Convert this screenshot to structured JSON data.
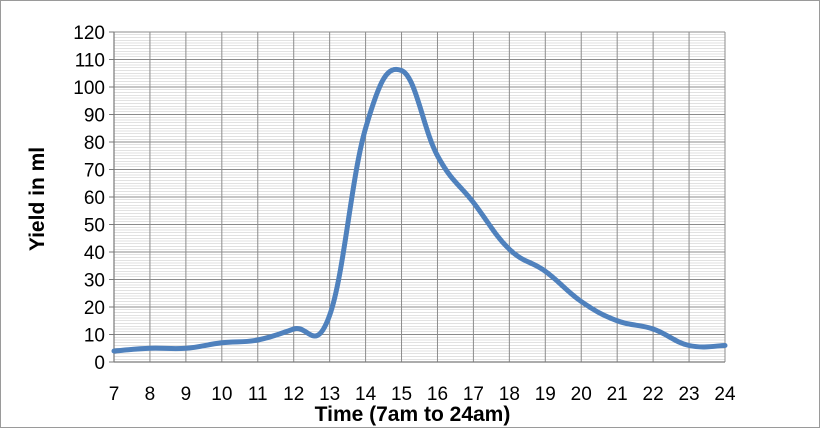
{
  "chart_data": {
    "type": "line",
    "title": "",
    "xlabel": "Time (7am to 24am)",
    "ylabel": "Yield in ml",
    "x": [
      7,
      8,
      9,
      10,
      11,
      12,
      13,
      14,
      15,
      16,
      17,
      18,
      19,
      20,
      21,
      22,
      23,
      24
    ],
    "series": [
      {
        "values": [
          4,
          5,
          5,
          7,
          8,
          12,
          17,
          85,
          106,
          75,
          58,
          41,
          33,
          22,
          15,
          12,
          6,
          6
        ]
      }
    ],
    "ylim": [
      0,
      120
    ],
    "yticks": [
      0,
      10,
      20,
      30,
      40,
      50,
      60,
      70,
      80,
      90,
      100,
      110,
      120
    ],
    "xticks": [
      7,
      8,
      9,
      10,
      11,
      12,
      13,
      14,
      15,
      16,
      17,
      18,
      19,
      20,
      21,
      22,
      23,
      24
    ],
    "grid": true,
    "legend": "none",
    "colors": {
      "line": "#4f81bd",
      "grid_major": "#8c8c8c",
      "grid_minor": "#c4c4c4",
      "frame": "#9a9a9a"
    }
  }
}
